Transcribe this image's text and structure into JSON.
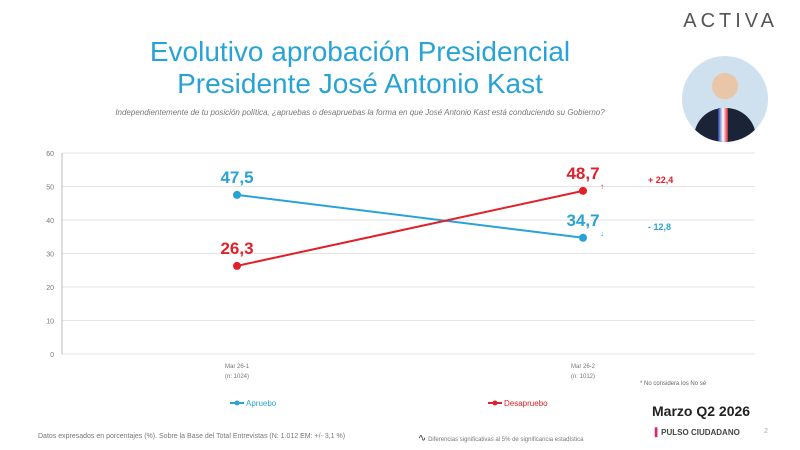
{
  "logo": "ACTIVA",
  "title_line1": "Evolutivo aprobación Presidencial",
  "title_line2": "Presidente José Antonio Kast",
  "question": "Independientemente de tu posición política, ¿apruebas o desapruebas la forma en que José Antonio Kast está conduciendo su Gobierno?",
  "note": "* No considera los No sé",
  "footer_left": "Datos expresados en porcentajes (%). Sobre la Base del Total Entrevistas (N: 1.012  EM: +/- 3,1 %)",
  "footer_mid": "Diferencias significativas al 5% de significancia estadística",
  "period": "Marzo Q2  2026",
  "brand": "PULSO CIUDADANO",
  "page_number": "2",
  "chart_data": {
    "type": "line",
    "categories": [
      "Mar 26-1",
      "Mar 26-2"
    ],
    "category_sublabels": [
      "(n: 1024)",
      "(n: 1012)"
    ],
    "ylim": [
      0,
      60
    ],
    "yticks": [
      0,
      10,
      20,
      30,
      40,
      50,
      60
    ],
    "grid": true,
    "legend_position": "bottom",
    "series": [
      {
        "name": "Apruebo",
        "color": "#29a3d6",
        "values": [
          47.5,
          34.7
        ],
        "labels": [
          "47,5",
          "34,7"
        ],
        "change": "- 12,8",
        "arrow": "↓"
      },
      {
        "name": "Desapruebo",
        "color": "#e0202a",
        "values": [
          26.3,
          48.7
        ],
        "labels": [
          "26,3",
          "48,7"
        ],
        "change": "+ 22,4",
        "arrow": "↑"
      }
    ]
  }
}
